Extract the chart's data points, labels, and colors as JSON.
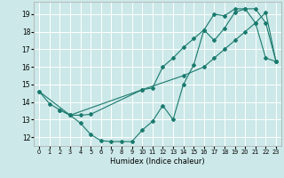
{
  "xlabel": "Humidex (Indice chaleur)",
  "bg_color": "#cce8e8",
  "line_color": "#1a7a6e",
  "grid_color": "#ffffff",
  "xlim": [
    -0.5,
    23.5
  ],
  "ylim": [
    11.5,
    19.7
  ],
  "xticks": [
    0,
    1,
    2,
    3,
    4,
    5,
    6,
    7,
    8,
    9,
    10,
    11,
    12,
    13,
    14,
    15,
    16,
    17,
    18,
    19,
    20,
    21,
    22,
    23
  ],
  "yticks": [
    12,
    13,
    14,
    15,
    16,
    17,
    18,
    19
  ],
  "line1_x": [
    0,
    1,
    2,
    3,
    4,
    5,
    6,
    7,
    8,
    9,
    10,
    11,
    12,
    13,
    14,
    15,
    16,
    17,
    18,
    19,
    20,
    21,
    22,
    23
  ],
  "line1_y": [
    14.6,
    13.9,
    13.55,
    13.25,
    12.8,
    12.15,
    11.8,
    11.75,
    11.75,
    11.75,
    12.4,
    12.9,
    13.8,
    13.0,
    15.0,
    16.1,
    18.1,
    17.5,
    18.2,
    19.1,
    19.3,
    18.5,
    16.5,
    16.3
  ],
  "line2_x": [
    2,
    3,
    4,
    5,
    10,
    11,
    12,
    13,
    14,
    15,
    16,
    17,
    18,
    19,
    20,
    21,
    22,
    23
  ],
  "line2_y": [
    13.55,
    13.25,
    13.25,
    13.3,
    14.7,
    14.8,
    16.0,
    16.5,
    17.1,
    17.6,
    18.1,
    19.0,
    18.9,
    19.3,
    19.3,
    19.3,
    18.5,
    16.3
  ],
  "line3_x": [
    0,
    3,
    10,
    14,
    16,
    17,
    18,
    19,
    20,
    21,
    22,
    23
  ],
  "line3_y": [
    14.6,
    13.25,
    14.7,
    15.5,
    16.0,
    16.5,
    17.0,
    17.5,
    18.0,
    18.5,
    19.1,
    16.3
  ]
}
